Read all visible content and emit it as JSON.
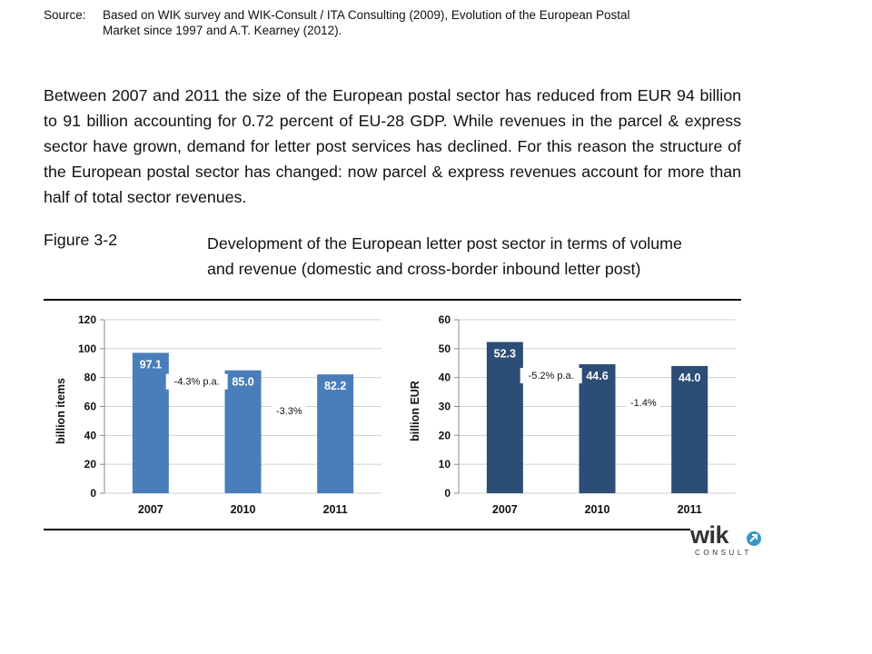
{
  "source": {
    "label": "Source:",
    "line1": "Based on WIK survey and WIK-Consult / ITA Consulting (2009), Evolution of the European Postal",
    "line2": "Market since 1997 and A.T. Kearney (2012)."
  },
  "paragraph": "Between 2007 and 2011 the size of the European postal sector has reduced from EUR 94 billion to 91 billion accounting for 0.72 percent of EU-28 GDP. While revenues in the parcel & express sector have grown, demand for letter post services has declined. For this reason the structure of the European postal sector has changed: now parcel & express revenues account for more than half of total sector revenues.",
  "figure": {
    "number": "Figure 3-2",
    "title_line1": "Development of the European letter post sector in terms of volume",
    "title_line2": "and revenue (domestic and cross-border inbound letter post)"
  },
  "logo": {
    "text": "wik",
    "subtext": "CONSULT"
  },
  "chart_data": [
    {
      "type": "bar",
      "title": "",
      "xlabel": "",
      "ylabel": "billion items",
      "categories": [
        "2007",
        "2010",
        "2011"
      ],
      "values": [
        97.1,
        85.0,
        82.2
      ],
      "data_labels": [
        "97.1",
        "85.0",
        "82.2"
      ],
      "ylim": [
        0,
        120
      ],
      "yticks": [
        0,
        20,
        40,
        60,
        80,
        100,
        120
      ],
      "grid": true,
      "color": "#4a7ebb",
      "annotations": [
        "-4.3% p.a.",
        "-3.3%"
      ]
    },
    {
      "type": "bar",
      "title": "",
      "xlabel": "",
      "ylabel": "billion EUR",
      "categories": [
        "2007",
        "2010",
        "2011"
      ],
      "values": [
        52.3,
        44.6,
        44.0
      ],
      "data_labels": [
        "52.3",
        "44.6",
        "44.0"
      ],
      "ylim": [
        0,
        60
      ],
      "yticks": [
        0,
        10,
        20,
        30,
        40,
        50,
        60
      ],
      "grid": true,
      "color": "#2c4d75",
      "annotations": [
        "-5.2% p.a.",
        "-1.4%"
      ]
    }
  ]
}
